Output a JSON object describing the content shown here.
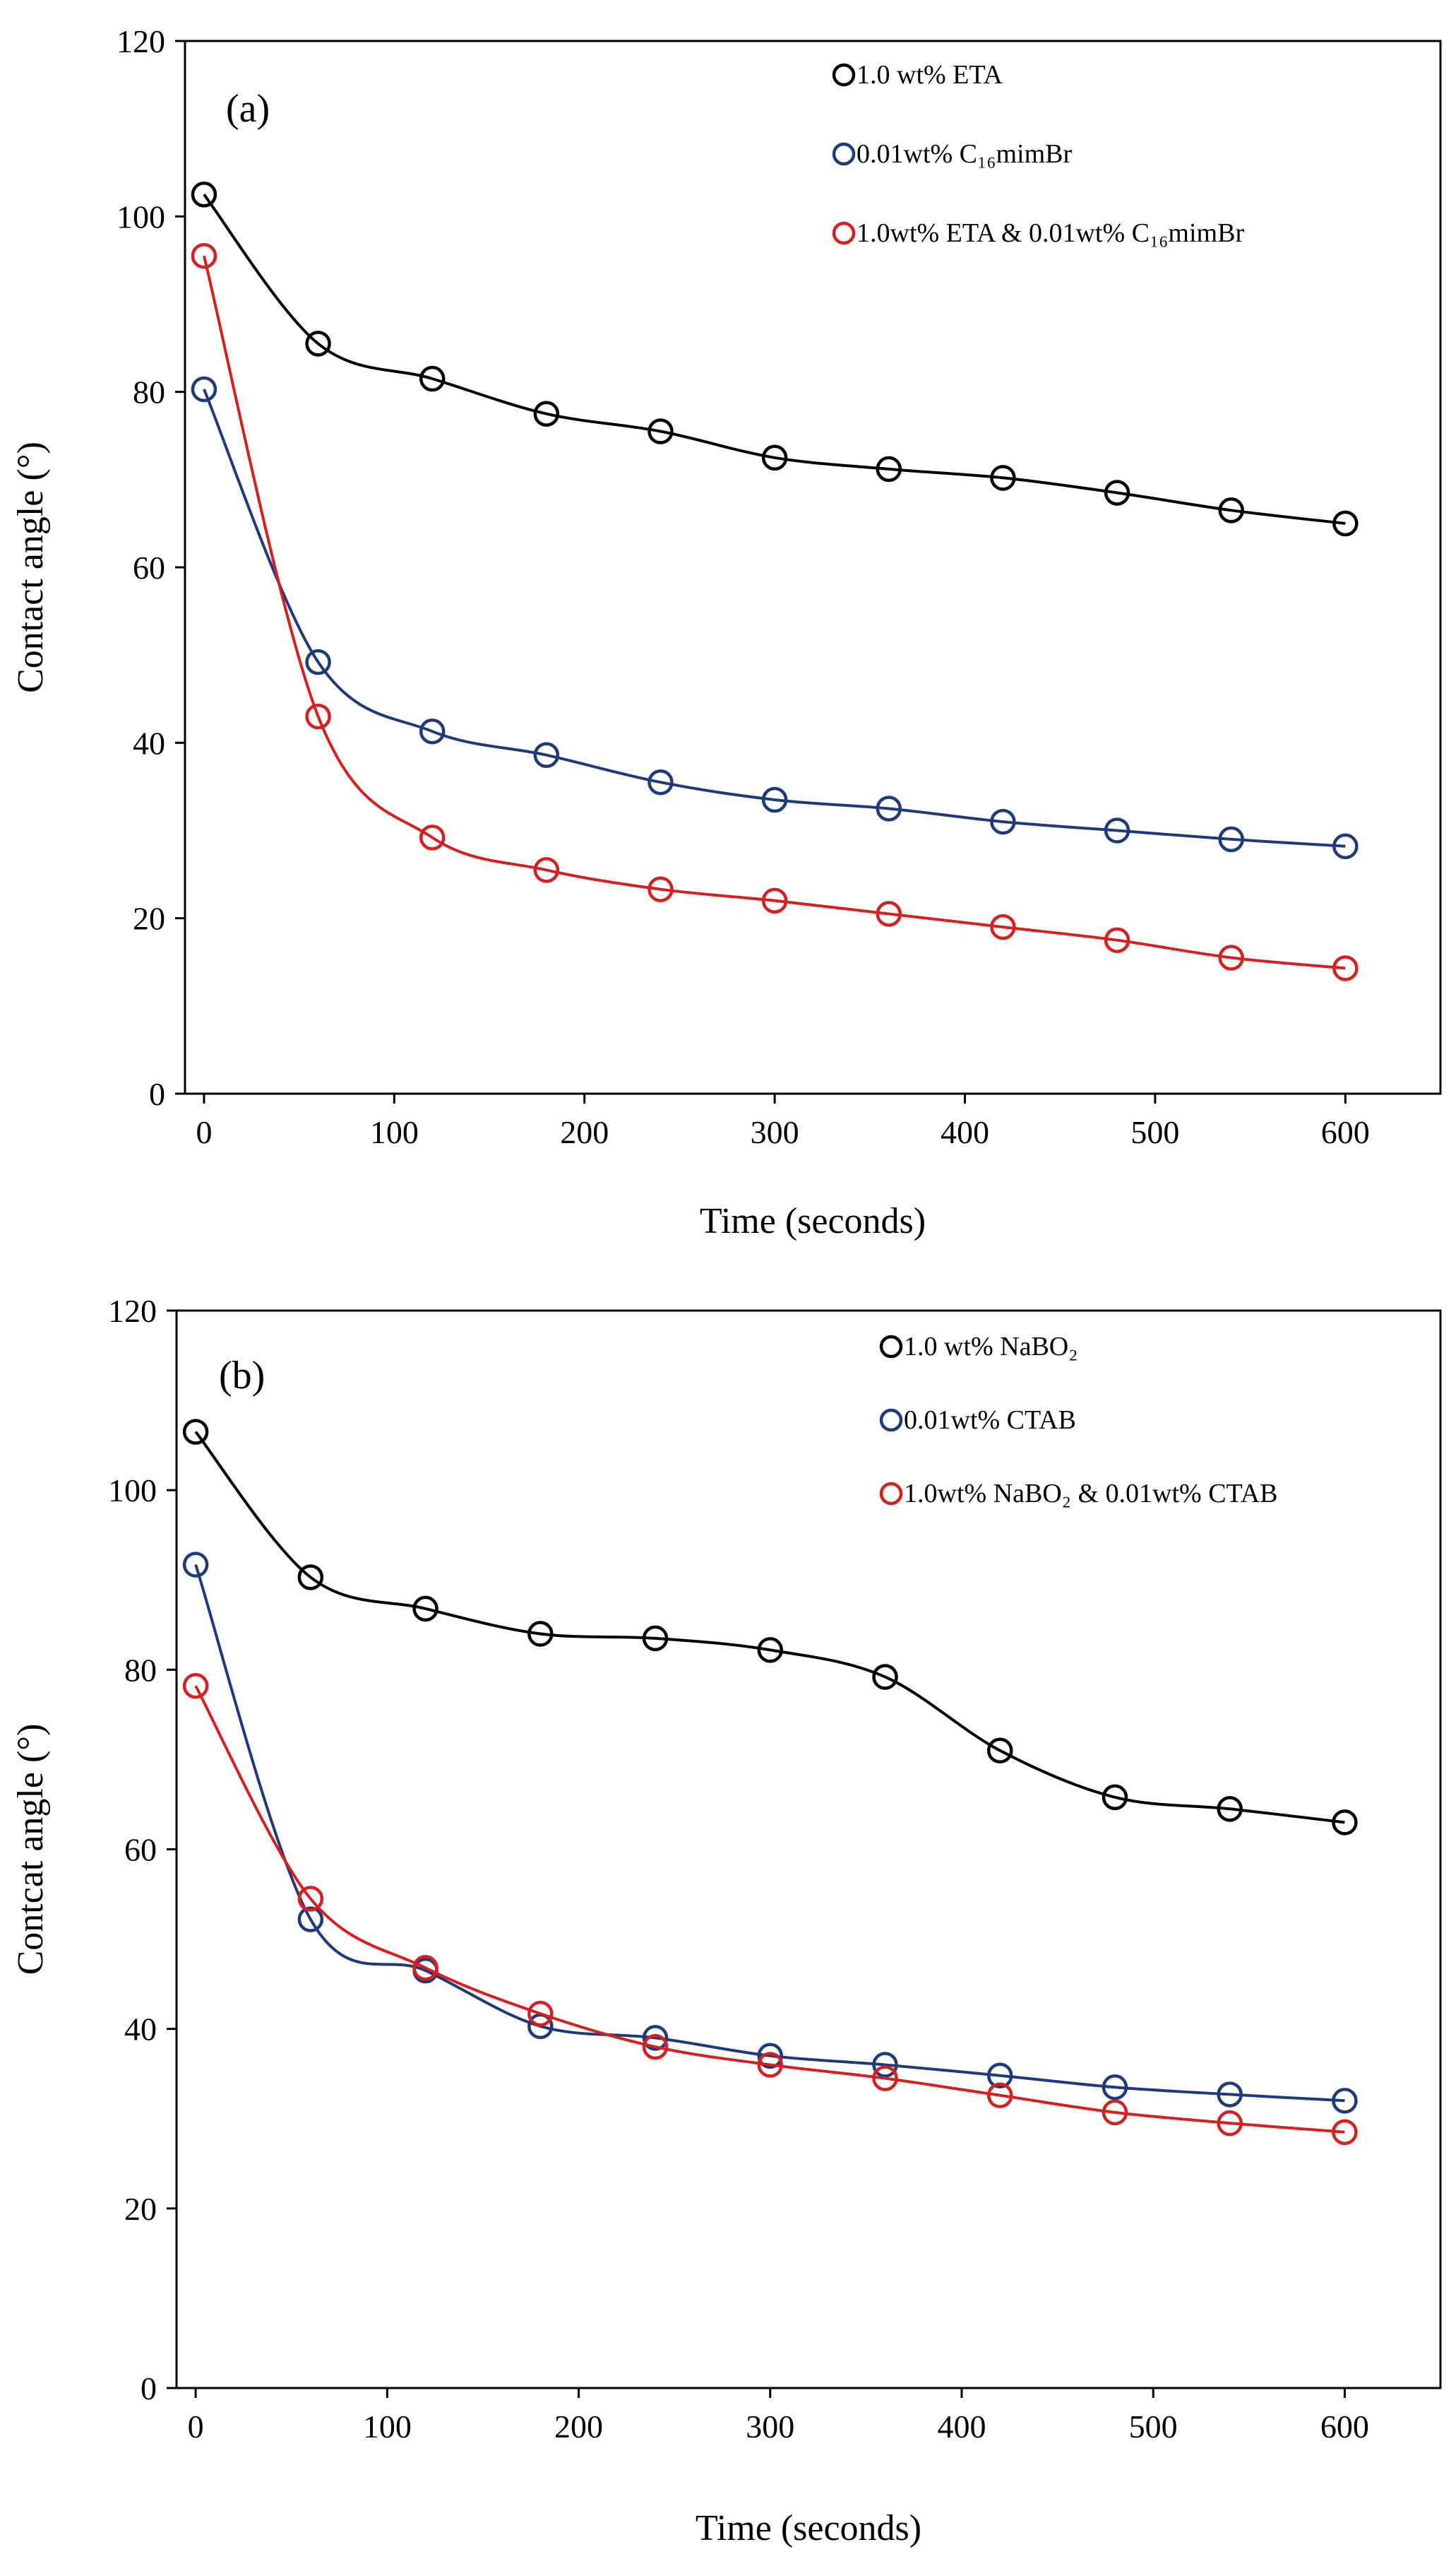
{
  "chart_data": [
    {
      "type": "scatter",
      "panel_label": "(a)",
      "xlabel": "Time (seconds)",
      "ylabel": "Contact angle (°)",
      "xlim": [
        -10,
        650
      ],
      "ylim": [
        0,
        120
      ],
      "xticks": [
        0,
        100,
        200,
        300,
        400,
        500,
        600
      ],
      "yticks": [
        0,
        20,
        40,
        60,
        80,
        100,
        120
      ],
      "legend_position": "top-right",
      "x": [
        0,
        60,
        120,
        180,
        240,
        300,
        360,
        420,
        480,
        540,
        600
      ],
      "series": [
        {
          "name": "1.0 wt% ETA",
          "color": "#000000",
          "values": [
            102.5,
            85.5,
            81.5,
            77.5,
            75.5,
            72.5,
            71.2,
            70.2,
            68.5,
            66.5,
            65
          ]
        },
        {
          "name": "0.01wt% C₁₆mimBr",
          "color": "#1f3a7a",
          "values": [
            80.3,
            49.2,
            41.3,
            38.6,
            35.5,
            33.5,
            32.5,
            31,
            30,
            29,
            28.2
          ]
        },
        {
          "name": "1.0wt% ETA & 0.01wt% C₁₆mimBr",
          "color": "#d42020",
          "values": [
            95.5,
            43,
            29.2,
            25.5,
            23.3,
            22,
            20.5,
            19,
            17.5,
            15.5,
            14.3
          ]
        }
      ]
    },
    {
      "type": "scatter",
      "panel_label": "(b)",
      "xlabel": "Time (seconds)",
      "ylabel": "Contcat angle (°)",
      "xlim": [
        -10,
        650
      ],
      "ylim": [
        0,
        120
      ],
      "xticks": [
        0,
        100,
        200,
        300,
        400,
        500,
        600
      ],
      "yticks": [
        0,
        20,
        40,
        60,
        80,
        100,
        120
      ],
      "legend_position": "top-right",
      "x": [
        0,
        60,
        120,
        180,
        240,
        300,
        360,
        420,
        480,
        540,
        600
      ],
      "series": [
        {
          "name": "1.0 wt% NaBO₂",
          "color": "#000000",
          "values": [
            106.5,
            90.3,
            86.8,
            84,
            83.5,
            82.2,
            79.2,
            71,
            65.8,
            64.5,
            63
          ]
        },
        {
          "name": "0.01wt% CTAB",
          "color": "#1f3a7a",
          "values": [
            91.7,
            52.2,
            46.5,
            40.3,
            39,
            37,
            36,
            34.8,
            33.5,
            32.7,
            32
          ]
        },
        {
          "name": "1.0wt% NaBO₂ & 0.01wt% CTAB",
          "color": "#d42020",
          "values": [
            78.2,
            54.5,
            46.8,
            41.7,
            38,
            36,
            34.5,
            32.6,
            30.7,
            29.5,
            28.5
          ]
        }
      ]
    }
  ]
}
